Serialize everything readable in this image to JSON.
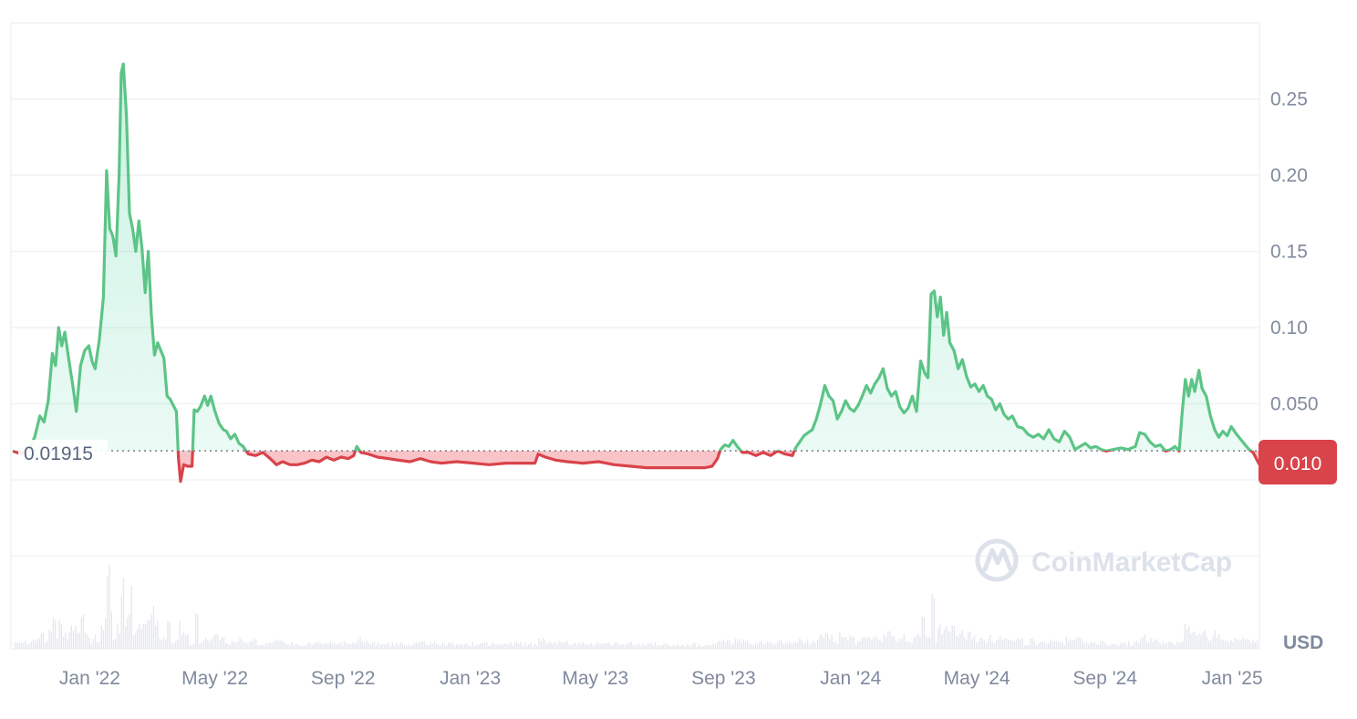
{
  "chart_data": {
    "type": "line",
    "currency": "USD",
    "reference_value": 0.01915,
    "reference_label": "0.01915",
    "current_price_label": "0.010",
    "watermark": "CoinMarketCap",
    "x_ticks": [
      "Jan '22",
      "May '22",
      "Sep '22",
      "Jan '23",
      "May '23",
      "Sep '23",
      "Jan '24",
      "May '24",
      "Sep '24",
      "Jan '25"
    ],
    "y_ticks": [
      "0.25",
      "0.20",
      "0.15",
      "0.10",
      "0.050"
    ],
    "ylim": [
      -0.035,
      0.305
    ],
    "xlim": [
      "2021-10-20",
      "2025-01-28"
    ],
    "colors": {
      "up": "#16c784",
      "up_line": "#5cc486",
      "down": "#ea3943",
      "down_line": "#d9434a",
      "grid": "#eff2f5",
      "text": "#808a9d"
    },
    "series": [
      {
        "values": [
          [
            "2021-10-20",
            0.019
          ],
          [
            "2021-10-28",
            0.017
          ],
          [
            "2021-11-05",
            0.021
          ],
          [
            "2021-11-10",
            0.028
          ],
          [
            "2021-11-15",
            0.042
          ],
          [
            "2021-11-19",
            0.038
          ],
          [
            "2021-11-23",
            0.052
          ],
          [
            "2021-11-27",
            0.083
          ],
          [
            "2021-11-30",
            0.075
          ],
          [
            "2021-12-03",
            0.1
          ],
          [
            "2021-12-06",
            0.088
          ],
          [
            "2021-12-09",
            0.097
          ],
          [
            "2021-12-13",
            0.078
          ],
          [
            "2021-12-17",
            0.06
          ],
          [
            "2021-12-20",
            0.045
          ],
          [
            "2021-12-24",
            0.075
          ],
          [
            "2021-12-28",
            0.085
          ],
          [
            "2022-01-01",
            0.088
          ],
          [
            "2022-01-04",
            0.078
          ],
          [
            "2022-01-07",
            0.073
          ],
          [
            "2022-01-11",
            0.092
          ],
          [
            "2022-01-15",
            0.12
          ],
          [
            "2022-01-18",
            0.203
          ],
          [
            "2022-01-21",
            0.165
          ],
          [
            "2022-01-24",
            0.16
          ],
          [
            "2022-01-27",
            0.147
          ],
          [
            "2022-01-30",
            0.2
          ],
          [
            "2022-02-01",
            0.267
          ],
          [
            "2022-02-03",
            0.273
          ],
          [
            "2022-02-06",
            0.24
          ],
          [
            "2022-02-09",
            0.175
          ],
          [
            "2022-02-12",
            0.165
          ],
          [
            "2022-02-15",
            0.15
          ],
          [
            "2022-02-18",
            0.17
          ],
          [
            "2022-02-21",
            0.152
          ],
          [
            "2022-02-24",
            0.123
          ],
          [
            "2022-02-27",
            0.15
          ],
          [
            "2022-03-02",
            0.108
          ],
          [
            "2022-03-05",
            0.082
          ],
          [
            "2022-03-08",
            0.09
          ],
          [
            "2022-03-11",
            0.085
          ],
          [
            "2022-03-14",
            0.08
          ],
          [
            "2022-03-17",
            0.055
          ],
          [
            "2022-03-20",
            0.053
          ],
          [
            "2022-03-23",
            0.049
          ],
          [
            "2022-03-26",
            0.045
          ],
          [
            "2022-03-28",
            0.014
          ],
          [
            "2022-03-30",
            -0.001
          ],
          [
            "2022-04-02",
            0.01
          ],
          [
            "2022-04-06",
            0.009
          ],
          [
            "2022-04-10",
            0.009
          ],
          [
            "2022-04-12",
            0.046
          ],
          [
            "2022-04-15",
            0.045
          ],
          [
            "2022-04-18",
            0.048
          ],
          [
            "2022-04-22",
            0.055
          ],
          [
            "2022-04-25",
            0.049
          ],
          [
            "2022-04-28",
            0.055
          ],
          [
            "2022-05-02",
            0.045
          ],
          [
            "2022-05-06",
            0.037
          ],
          [
            "2022-05-10",
            0.033
          ],
          [
            "2022-05-13",
            0.032
          ],
          [
            "2022-05-17",
            0.027
          ],
          [
            "2022-05-21",
            0.03
          ],
          [
            "2022-05-25",
            0.024
          ],
          [
            "2022-05-29",
            0.022
          ],
          [
            "2022-06-03",
            0.017
          ],
          [
            "2022-06-10",
            0.016
          ],
          [
            "2022-06-17",
            0.018
          ],
          [
            "2022-06-24",
            0.014
          ],
          [
            "2022-06-30",
            0.01
          ],
          [
            "2022-07-06",
            0.012
          ],
          [
            "2022-07-13",
            0.01
          ],
          [
            "2022-07-20",
            0.01
          ],
          [
            "2022-07-27",
            0.011
          ],
          [
            "2022-08-03",
            0.013
          ],
          [
            "2022-08-10",
            0.012
          ],
          [
            "2022-08-17",
            0.015
          ],
          [
            "2022-08-24",
            0.013
          ],
          [
            "2022-08-31",
            0.015
          ],
          [
            "2022-09-07",
            0.014
          ],
          [
            "2022-09-12",
            0.016
          ],
          [
            "2022-09-15",
            0.022
          ],
          [
            "2022-09-19",
            0.018
          ],
          [
            "2022-09-26",
            0.017
          ],
          [
            "2022-10-05",
            0.015
          ],
          [
            "2022-10-15",
            0.014
          ],
          [
            "2022-10-25",
            0.013
          ],
          [
            "2022-11-05",
            0.012
          ],
          [
            "2022-11-15",
            0.014
          ],
          [
            "2022-11-25",
            0.012
          ],
          [
            "2022-12-05",
            0.011
          ],
          [
            "2022-12-20",
            0.012
          ],
          [
            "2023-01-05",
            0.011
          ],
          [
            "2023-01-20",
            0.01
          ],
          [
            "2023-02-05",
            0.011
          ],
          [
            "2023-02-20",
            0.011
          ],
          [
            "2023-03-05",
            0.011
          ],
          [
            "2023-03-08",
            0.017
          ],
          [
            "2023-03-15",
            0.015
          ],
          [
            "2023-03-25",
            0.013
          ],
          [
            "2023-04-05",
            0.012
          ],
          [
            "2023-04-20",
            0.011
          ],
          [
            "2023-05-05",
            0.012
          ],
          [
            "2023-05-20",
            0.01
          ],
          [
            "2023-06-05",
            0.009
          ],
          [
            "2023-06-20",
            0.008
          ],
          [
            "2023-07-05",
            0.008
          ],
          [
            "2023-07-20",
            0.008
          ],
          [
            "2023-08-05",
            0.008
          ],
          [
            "2023-08-15",
            0.008
          ],
          [
            "2023-08-22",
            0.009
          ],
          [
            "2023-08-27",
            0.014
          ],
          [
            "2023-08-30",
            0.02
          ],
          [
            "2023-09-03",
            0.023
          ],
          [
            "2023-09-07",
            0.022
          ],
          [
            "2023-09-11",
            0.026
          ],
          [
            "2023-09-15",
            0.022
          ],
          [
            "2023-09-20",
            0.018
          ],
          [
            "2023-09-26",
            0.018
          ],
          [
            "2023-10-03",
            0.016
          ],
          [
            "2023-10-10",
            0.018
          ],
          [
            "2023-10-17",
            0.016
          ],
          [
            "2023-10-24",
            0.019
          ],
          [
            "2023-10-31",
            0.017
          ],
          [
            "2023-11-07",
            0.016
          ],
          [
            "2023-11-10",
            0.021
          ],
          [
            "2023-11-14",
            0.025
          ],
          [
            "2023-11-18",
            0.029
          ],
          [
            "2023-11-22",
            0.031
          ],
          [
            "2023-11-26",
            0.033
          ],
          [
            "2023-11-30",
            0.04
          ],
          [
            "2023-12-04",
            0.05
          ],
          [
            "2023-12-08",
            0.062
          ],
          [
            "2023-12-12",
            0.055
          ],
          [
            "2023-12-16",
            0.052
          ],
          [
            "2023-12-20",
            0.04
          ],
          [
            "2023-12-24",
            0.045
          ],
          [
            "2023-12-28",
            0.052
          ],
          [
            "2024-01-01",
            0.047
          ],
          [
            "2024-01-05",
            0.045
          ],
          [
            "2024-01-09",
            0.049
          ],
          [
            "2024-01-13",
            0.055
          ],
          [
            "2024-01-17",
            0.062
          ],
          [
            "2024-01-21",
            0.057
          ],
          [
            "2024-01-25",
            0.063
          ],
          [
            "2024-01-29",
            0.067
          ],
          [
            "2024-02-02",
            0.073
          ],
          [
            "2024-02-06",
            0.06
          ],
          [
            "2024-02-10",
            0.055
          ],
          [
            "2024-02-14",
            0.058
          ],
          [
            "2024-02-18",
            0.048
          ],
          [
            "2024-02-22",
            0.044
          ],
          [
            "2024-02-26",
            0.047
          ],
          [
            "2024-03-01",
            0.055
          ],
          [
            "2024-03-05",
            0.045
          ],
          [
            "2024-03-09",
            0.078
          ],
          [
            "2024-03-13",
            0.07
          ],
          [
            "2024-03-16",
            0.067
          ],
          [
            "2024-03-19",
            0.122
          ],
          [
            "2024-03-22",
            0.124
          ],
          [
            "2024-03-25",
            0.107
          ],
          [
            "2024-03-28",
            0.12
          ],
          [
            "2024-03-31",
            0.095
          ],
          [
            "2024-04-03",
            0.11
          ],
          [
            "2024-04-06",
            0.09
          ],
          [
            "2024-04-10",
            0.085
          ],
          [
            "2024-04-14",
            0.073
          ],
          [
            "2024-04-18",
            0.079
          ],
          [
            "2024-04-22",
            0.068
          ],
          [
            "2024-04-26",
            0.061
          ],
          [
            "2024-04-30",
            0.063
          ],
          [
            "2024-05-04",
            0.058
          ],
          [
            "2024-05-08",
            0.062
          ],
          [
            "2024-05-12",
            0.055
          ],
          [
            "2024-05-16",
            0.053
          ],
          [
            "2024-05-20",
            0.046
          ],
          [
            "2024-05-24",
            0.05
          ],
          [
            "2024-05-28",
            0.043
          ],
          [
            "2024-06-01",
            0.04
          ],
          [
            "2024-06-05",
            0.042
          ],
          [
            "2024-06-10",
            0.035
          ],
          [
            "2024-06-15",
            0.034
          ],
          [
            "2024-06-20",
            0.03
          ],
          [
            "2024-06-25",
            0.028
          ],
          [
            "2024-06-30",
            0.03
          ],
          [
            "2024-07-05",
            0.027
          ],
          [
            "2024-07-10",
            0.033
          ],
          [
            "2024-07-15",
            0.027
          ],
          [
            "2024-07-20",
            0.025
          ],
          [
            "2024-07-25",
            0.032
          ],
          [
            "2024-07-30",
            0.028
          ],
          [
            "2024-08-04",
            0.02
          ],
          [
            "2024-08-09",
            0.022
          ],
          [
            "2024-08-14",
            0.024
          ],
          [
            "2024-08-19",
            0.021
          ],
          [
            "2024-08-24",
            0.022
          ],
          [
            "2024-08-29",
            0.02
          ],
          [
            "2024-09-03",
            0.019
          ],
          [
            "2024-09-10",
            0.02
          ],
          [
            "2024-09-17",
            0.021
          ],
          [
            "2024-09-24",
            0.02
          ],
          [
            "2024-10-01",
            0.022
          ],
          [
            "2024-10-05",
            0.031
          ],
          [
            "2024-10-10",
            0.03
          ],
          [
            "2024-10-15",
            0.025
          ],
          [
            "2024-10-20",
            0.022
          ],
          [
            "2024-10-25",
            0.023
          ],
          [
            "2024-10-30",
            0.019
          ],
          [
            "2024-11-04",
            0.02
          ],
          [
            "2024-11-08",
            0.022
          ],
          [
            "2024-11-12",
            0.019
          ],
          [
            "2024-11-15",
            0.045
          ],
          [
            "2024-11-18",
            0.066
          ],
          [
            "2024-11-21",
            0.055
          ],
          [
            "2024-11-24",
            0.066
          ],
          [
            "2024-11-27",
            0.058
          ],
          [
            "2024-12-01",
            0.072
          ],
          [
            "2024-12-04",
            0.06
          ],
          [
            "2024-12-08",
            0.055
          ],
          [
            "2024-12-12",
            0.042
          ],
          [
            "2024-12-16",
            0.033
          ],
          [
            "2024-12-20",
            0.028
          ],
          [
            "2024-12-24",
            0.032
          ],
          [
            "2024-12-28",
            0.029
          ],
          [
            "2025-01-01",
            0.035
          ],
          [
            "2025-01-06",
            0.03
          ],
          [
            "2025-01-12",
            0.025
          ],
          [
            "2025-01-18",
            0.02
          ],
          [
            "2025-01-22",
            0.018
          ],
          [
            "2025-01-28",
            0.01
          ]
        ]
      }
    ]
  }
}
